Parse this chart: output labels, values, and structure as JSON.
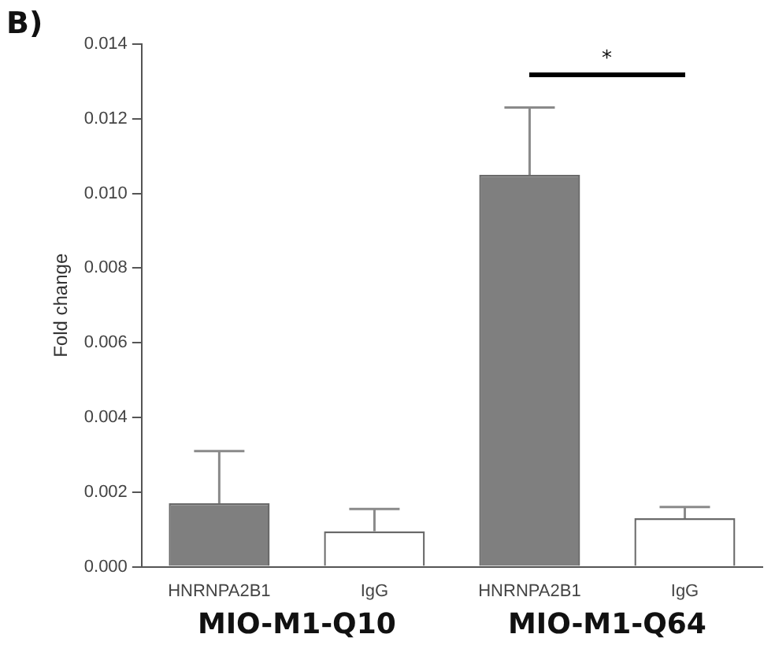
{
  "chart_data": {
    "type": "bar",
    "ylabel": "Fold change",
    "categories": [
      "HNRNPA2B1",
      "IgG",
      "HNRNPA2B1",
      "IgG"
    ],
    "values": [
      0.0017,
      0.00095,
      0.0105,
      0.0013
    ],
    "colors": [
      "#7f7f7f",
      "#ffffff",
      "#7f7f7f",
      "#ffffff"
    ],
    "errors": [
      [
        0.0017,
        0.0031
      ],
      [
        0.00095,
        0.00155
      ],
      [
        0.0105,
        0.0123
      ],
      [
        0.0013,
        0.0016
      ]
    ],
    "ylim": [
      0,
      0.014
    ],
    "yticks": [
      {
        "value": 0,
        "label": "0.000"
      },
      {
        "value": 0.002,
        "label": "0.002"
      },
      {
        "value": 0.004,
        "label": "0.004"
      },
      {
        "value": 0.006,
        "label": "0.006"
      },
      {
        "value": 0.008,
        "label": "0.008"
      },
      {
        "value": 0.01,
        "label": "0.010"
      },
      {
        "value": 0.012,
        "label": "0.012"
      },
      {
        "value": 0.014,
        "label": "0.014"
      }
    ],
    "grid": false,
    "legend": false,
    "annotations": [
      "B)",
      "*",
      "MIO-M1-Q10",
      "MIO-M1-Q64"
    ]
  }
}
